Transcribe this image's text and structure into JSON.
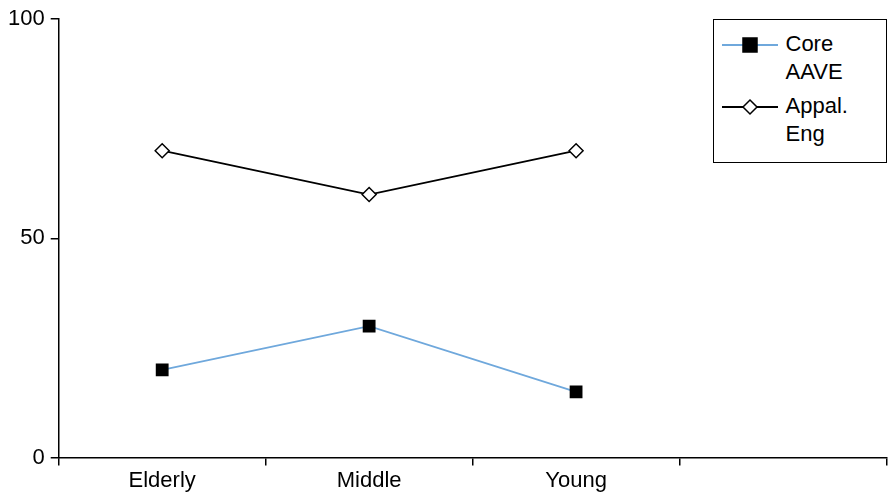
{
  "chart_data": {
    "type": "line",
    "categories": [
      "Elderly",
      "Middle",
      "Young",
      null
    ],
    "series": [
      {
        "name": "Core AAVE",
        "color": "#6fa8dc",
        "marker": "square",
        "values": [
          20,
          30,
          15,
          null
        ]
      },
      {
        "name": "Appal. Eng",
        "color": "#000000",
        "marker": "diamond",
        "values": [
          70,
          60,
          70,
          null
        ]
      }
    ],
    "ylim": [
      0,
      100
    ],
    "yticks": [
      0,
      50,
      100
    ],
    "grid": false,
    "legend": "upper right"
  }
}
